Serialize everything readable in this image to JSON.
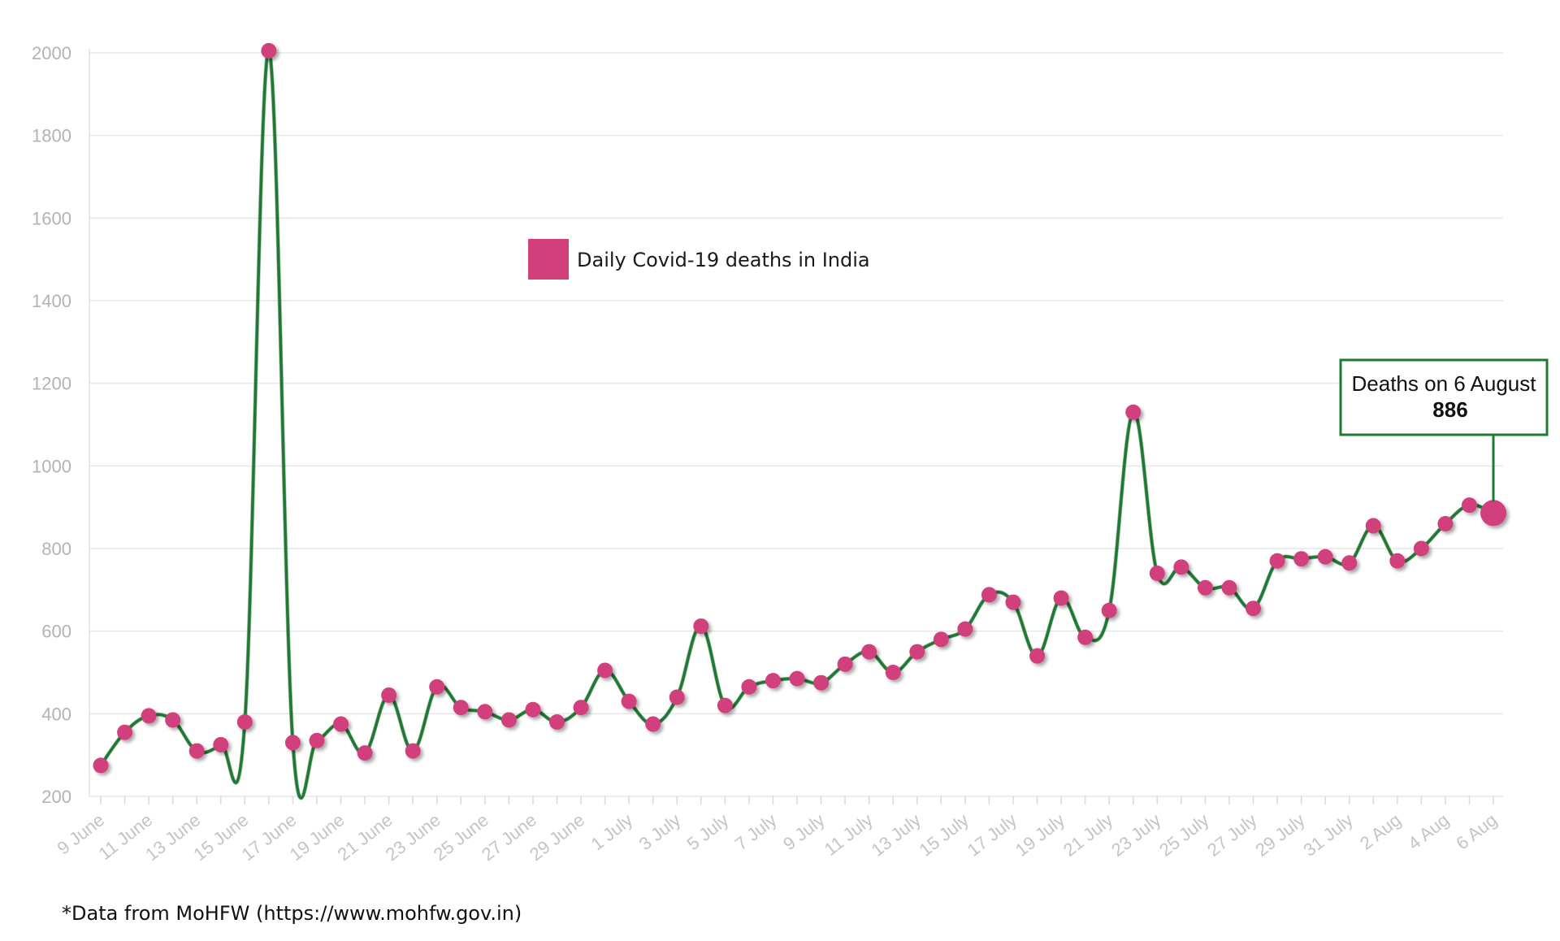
{
  "chart_data": {
    "type": "line",
    "title": "",
    "xlabel": "",
    "ylabel": "",
    "ylim": [
      200,
      2000
    ],
    "yticks": [
      200,
      400,
      600,
      800,
      1000,
      1200,
      1400,
      1600,
      1800,
      2000
    ],
    "grid": true,
    "legend_position": "top-center",
    "x": [
      "9 June",
      "10 June",
      "11 June",
      "12 June",
      "13 June",
      "14 June",
      "15 June",
      "16 June",
      "17 June",
      "18 June",
      "19 June",
      "20 June",
      "21 June",
      "22 June",
      "23 June",
      "24 June",
      "25 June",
      "26 June",
      "27 June",
      "28 June",
      "29 June",
      "30 June",
      "1 July",
      "2 July",
      "3 July",
      "4 July",
      "5 July",
      "6 July",
      "7 July",
      "8 July",
      "9 July",
      "10 July",
      "11 July",
      "12 July",
      "13 July",
      "14 July",
      "15 July",
      "16 July",
      "17 July",
      "18 July",
      "19 July",
      "20 July",
      "21 July",
      "22 July",
      "23 July",
      "24 July",
      "25 July",
      "26 July",
      "27 July",
      "28 July",
      "29 July",
      "30 July",
      "31 July",
      "1 Aug",
      "2 Aug",
      "3 Aug",
      "4 Aug",
      "5 Aug",
      "6 Aug"
    ],
    "xtick_labels": [
      "9 June",
      "11 June",
      "13 June",
      "15 June",
      "17 June",
      "19 June",
      "21 June",
      "23 June",
      "25 June",
      "27 June",
      "29 June",
      "1 July",
      "3 July",
      "5 July",
      "7 July",
      "9 July",
      "11 July",
      "13 July",
      "15 July",
      "17 July",
      "19 July",
      "21 July",
      "23 July",
      "25 July",
      "27 July",
      "29 July",
      "31 July",
      "2 Aug",
      "4 Aug",
      "6 Aug"
    ],
    "series": [
      {
        "name": "Daily Covid-19 deaths in India",
        "values": [
          275,
          355,
          395,
          385,
          310,
          325,
          380,
          2005,
          330,
          335,
          375,
          305,
          445,
          310,
          465,
          415,
          405,
          385,
          410,
          380,
          415,
          505,
          430,
          375,
          440,
          612,
          420,
          465,
          480,
          485,
          475,
          520,
          550,
          500,
          550,
          580,
          605,
          688,
          670,
          540,
          680,
          585,
          650,
          1130,
          740,
          755,
          705,
          705,
          655,
          770,
          775,
          780,
          765,
          855,
          770,
          800,
          860,
          905,
          886
        ]
      }
    ],
    "colors": {
      "line": "#1e7a32",
      "marker": "#d1407b",
      "callout_border": "#1e7a32",
      "grid": "#e6e6e6",
      "tick": "#b3b3b3"
    },
    "annotation": {
      "title": "Deaths on 6 August",
      "value": "886",
      "point_label": "6 Aug"
    }
  },
  "footnote": "*Data from MoHFW (https://www.mohfw.gov.in)"
}
